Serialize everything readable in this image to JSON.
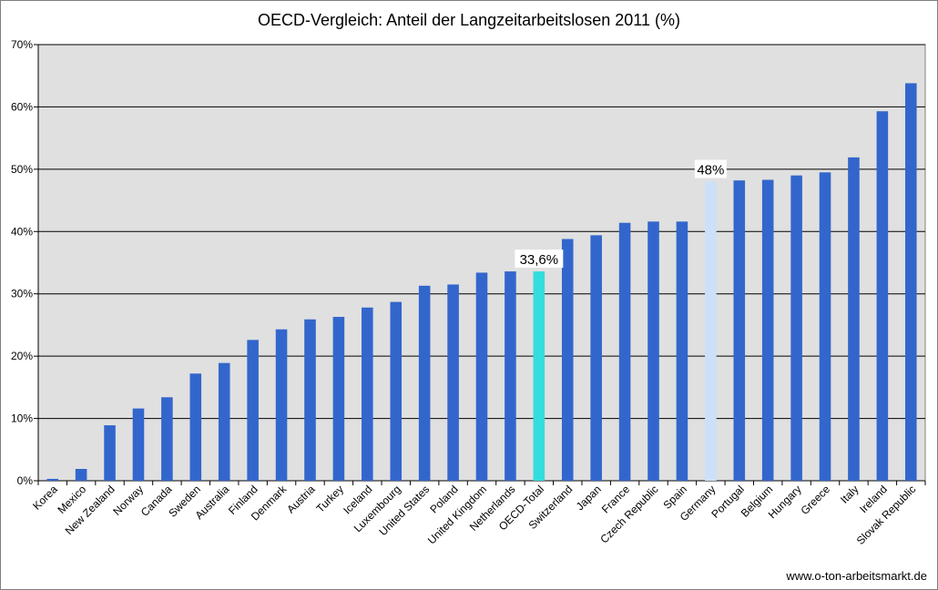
{
  "chart_data": {
    "type": "bar",
    "title": "OECD-Vergleich: Anteil der Langzeitarbeitslosen 2011 (%)",
    "xlabel": "",
    "ylabel": "",
    "ylim": [
      0,
      70
    ],
    "yticks": [
      "0%",
      "10%",
      "20%",
      "30%",
      "40%",
      "50%",
      "60%",
      "70%"
    ],
    "grid": true,
    "legend": "none",
    "categories": [
      "Korea",
      "Mexico",
      "New Zealand",
      "Norway",
      "Canada",
      "Sweden",
      "Australia",
      "Finland",
      "Denmark",
      "Austria",
      "Turkey",
      "Iceland",
      "Luxembourg",
      "United States",
      "Poland",
      "United Kingdom",
      "Netherlands",
      "OECD-Total",
      "Switzerland",
      "Japan",
      "France",
      "Czech Republic",
      "Spain",
      "Germany",
      "Portugal",
      "Belgium",
      "Hungary",
      "Greece",
      "Italy",
      "Ireland",
      "Slovak Republic"
    ],
    "values": [
      0.3,
      1.9,
      8.9,
      11.6,
      13.4,
      17.2,
      18.9,
      22.6,
      24.3,
      25.9,
      26.3,
      27.8,
      28.7,
      31.3,
      31.5,
      33.4,
      33.6,
      33.6,
      38.8,
      39.4,
      41.4,
      41.6,
      41.6,
      48.0,
      48.2,
      48.3,
      49.0,
      49.5,
      51.9,
      59.3,
      63.8
    ],
    "colors": {
      "default": "#3366cc",
      "highlights": {
        "OECD-Total": "#33dddd",
        "Germany": "#cce0f8"
      },
      "plot_background": "#e0e0e0",
      "gridline": "#000000"
    },
    "annotations": [
      {
        "category": "OECD-Total",
        "text": "33,6%"
      },
      {
        "category": "Germany",
        "text": "48%"
      }
    ]
  },
  "source": "www.o-ton-arbeitsmarkt.de"
}
